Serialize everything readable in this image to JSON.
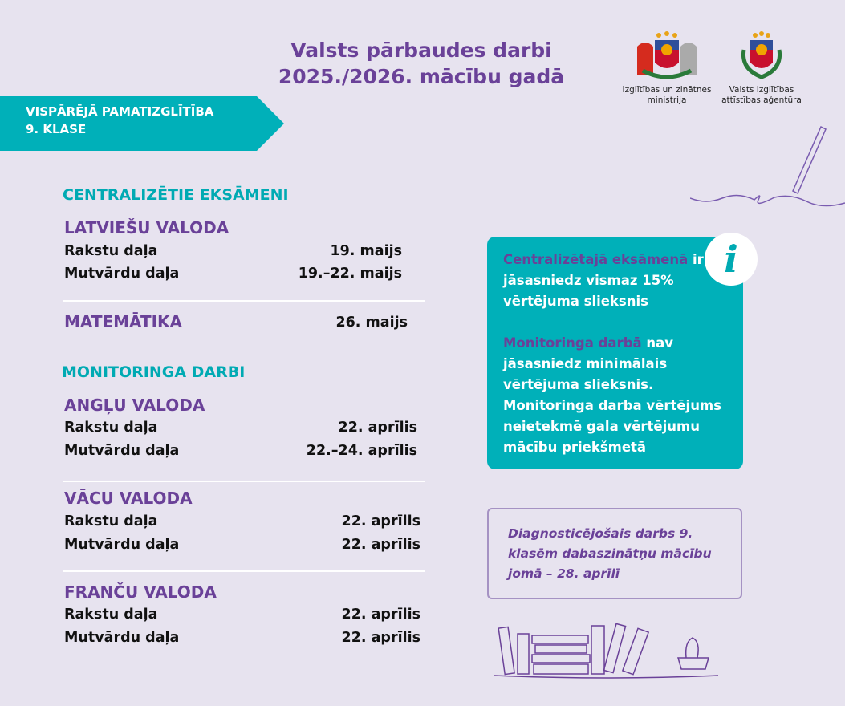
{
  "header": {
    "title_line1": "Valsts pārbaudes darbi",
    "title_line2": "2025./2026. mācību gadā"
  },
  "logos": [
    {
      "name": "Izglītības un zinātnes",
      "line2": "ministrija"
    },
    {
      "name": "Valsts izglītības",
      "line2": "attīstības aģentūra"
    }
  ],
  "banner": {
    "line1": "VISPĀRĒJĀ PAMATIZGLĪTĪBA",
    "line2": "9. KLASE"
  },
  "centralized": {
    "heading": "CENTRALIZĒTIE EKSĀMENI",
    "latvian": {
      "subject": "LATVIEŠU VALODA",
      "rows": [
        {
          "label": "Rakstu daļa",
          "date": "19. maijs"
        },
        {
          "label": "Mutvārdu daļa",
          "date": "19.–22. maijs"
        }
      ]
    },
    "math": {
      "subject": "MATEMĀTIKA",
      "date": "26. maijs"
    }
  },
  "monitoring": {
    "heading": "MONITORINGA DARBI",
    "english": {
      "subject": "ANGĻU VALODA",
      "rows": [
        {
          "label": "Rakstu daļa",
          "date": "22. aprīlis"
        },
        {
          "label": "Mutvārdu daļa",
          "date": "22.–24. aprīlis"
        }
      ]
    },
    "german": {
      "subject": "VĀCU VALODA",
      "rows": [
        {
          "label": "Rakstu daļa",
          "date": "22. aprīlis"
        },
        {
          "label": "Mutvārdu daļa",
          "date": "22. aprīlis"
        }
      ]
    },
    "french": {
      "subject": "FRANČU VALODA",
      "rows": [
        {
          "label": "Rakstu daļa",
          "date": "22. aprīlis"
        },
        {
          "label": "Mutvārdu daļa",
          "date": "22. aprīlis"
        }
      ]
    }
  },
  "info": {
    "icon": "i",
    "p1_highlight": "Centralizētajā eksāmenā",
    "p1_text": "ir jāsasniedz vismaz 15% vērtējuma slieksnis",
    "p2_highlight": "Monitoringa darbā",
    "p2_text": "nav jāsasniedz minimālais vērtējuma slieksnis. Monitoringa darba vērtējums neietekmē gala vērtējumu mācību priekšmetā"
  },
  "diagnostic": {
    "text": "Diagnosticējošais darbs 9. klasēm dabaszinātņu mācību jomā – 28. aprīlī"
  },
  "colors": {
    "background": "#e7e3ef",
    "teal": "#00b0b9",
    "purple": "#6a4198"
  }
}
